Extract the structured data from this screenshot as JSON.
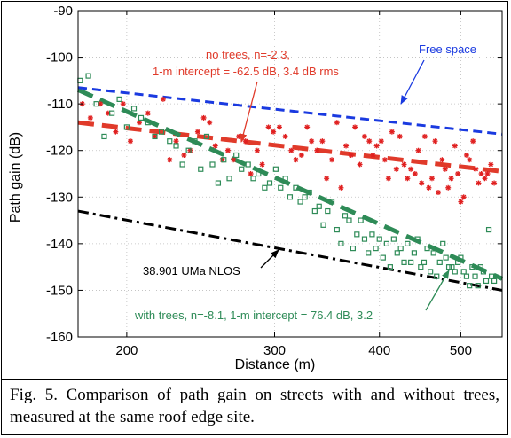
{
  "chart_data": {
    "type": "scatter",
    "xlabel": "Distance (m)",
    "ylabel": "Path gain (dB)",
    "xscale": "log",
    "xlim": [
      175,
      560
    ],
    "ylim": [
      -160,
      -90
    ],
    "xticks": [
      200,
      300,
      400,
      500
    ],
    "yticks": [
      -90,
      -100,
      -110,
      -120,
      -130,
      -140,
      -150,
      -160
    ],
    "grid": true,
    "series": [
      {
        "marker": "asterisk",
        "color": "#e02020",
        "points": [
          [
            177,
            -110
          ],
          [
            181,
            -113
          ],
          [
            186,
            -110
          ],
          [
            190,
            -112
          ],
          [
            194,
            -116
          ],
          [
            198,
            -110
          ],
          [
            202,
            -118
          ],
          [
            207,
            -114
          ],
          [
            212,
            -112
          ],
          [
            216,
            -117
          ],
          [
            221,
            -109
          ],
          [
            225,
            -122
          ],
          [
            229,
            -118
          ],
          [
            234,
            -121
          ],
          [
            238,
            -120
          ],
          [
            243,
            -116
          ],
          [
            247,
            -113
          ],
          [
            251,
            -114
          ],
          [
            255,
            -119
          ],
          [
            260,
            -122
          ],
          [
            264,
            -120
          ],
          [
            268,
            -122
          ],
          [
            272,
            -117
          ],
          [
            277,
            -118
          ],
          [
            281,
            -125
          ],
          [
            286,
            -120
          ],
          [
            290,
            -123
          ],
          [
            295,
            -115
          ],
          [
            299,
            -116
          ],
          [
            304,
            -115
          ],
          [
            309,
            -117
          ],
          [
            314,
            -120
          ],
          [
            318,
            -122
          ],
          [
            323,
            -121
          ],
          [
            328,
            -115
          ],
          [
            332,
            -118
          ],
          [
            337,
            -120
          ],
          [
            342,
            -118
          ],
          [
            346,
            -126
          ],
          [
            351,
            -122
          ],
          [
            356,
            -114
          ],
          [
            360,
            -128
          ],
          [
            365,
            -119
          ],
          [
            370,
            -121
          ],
          [
            374,
            -115
          ],
          [
            379,
            -123
          ],
          [
            384,
            -117
          ],
          [
            389,
            -118
          ],
          [
            393,
            -121
          ],
          [
            397,
            -119
          ],
          [
            402,
            -118
          ],
          [
            406,
            -122
          ],
          [
            410,
            -126
          ],
          [
            414,
            -116
          ],
          [
            419,
            -124
          ],
          [
            423,
            -117
          ],
          [
            428,
            -123
          ],
          [
            432,
            -126
          ],
          [
            436,
            -124
          ],
          [
            441,
            -125
          ],
          [
            445,
            -120
          ],
          [
            449,
            -127
          ],
          [
            453,
            -117
          ],
          [
            458,
            -128
          ],
          [
            462,
            -126
          ],
          [
            466,
            -118
          ],
          [
            470,
            -129
          ],
          [
            475,
            -122
          ],
          [
            479,
            -124
          ],
          [
            483,
            -128
          ],
          [
            487,
            -126
          ],
          [
            492,
            -119
          ],
          [
            496,
            -125
          ],
          [
            500,
            -131
          ],
          [
            504,
            -130
          ],
          [
            508,
            -121
          ],
          [
            512,
            -122
          ],
          [
            517,
            -118
          ],
          [
            521,
            -124
          ],
          [
            525,
            -127
          ],
          [
            529,
            -125
          ],
          [
            534,
            -126
          ],
          [
            538,
            -125
          ],
          [
            543,
            -123
          ],
          [
            548,
            -127
          ]
        ]
      },
      {
        "marker": "square",
        "color": "#2e8b57",
        "points": [
          [
            176,
            -105
          ],
          [
            180,
            -104
          ],
          [
            184,
            -110
          ],
          [
            188,
            -117
          ],
          [
            192,
            -112
          ],
          [
            196,
            -109
          ],
          [
            200,
            -115
          ],
          [
            204,
            -111
          ],
          [
            208,
            -113
          ],
          [
            212,
            -114
          ],
          [
            216,
            -117
          ],
          [
            220,
            -116
          ],
          [
            225,
            -118
          ],
          [
            229,
            -119
          ],
          [
            233,
            -123
          ],
          [
            237,
            -120
          ],
          [
            241,
            -118
          ],
          [
            245,
            -124
          ],
          [
            249,
            -117
          ],
          [
            253,
            -123
          ],
          [
            257,
            -127
          ],
          [
            261,
            -122
          ],
          [
            265,
            -126
          ],
          [
            270,
            -121
          ],
          [
            274,
            -124
          ],
          [
            279,
            -123
          ],
          [
            283,
            -126
          ],
          [
            287,
            -125
          ],
          [
            292,
            -128
          ],
          [
            296,
            -127
          ],
          [
            301,
            -124
          ],
          [
            305,
            -128
          ],
          [
            309,
            -126
          ],
          [
            313,
            -130
          ],
          [
            318,
            -128
          ],
          [
            322,
            -131
          ],
          [
            326,
            -130
          ],
          [
            330,
            -129
          ],
          [
            335,
            -133
          ],
          [
            339,
            -132
          ],
          [
            343,
            -136
          ],
          [
            347,
            -133
          ],
          [
            351,
            -131
          ],
          [
            356,
            -137
          ],
          [
            360,
            -140
          ],
          [
            364,
            -134
          ],
          [
            368,
            -135
          ],
          [
            372,
            -141
          ],
          [
            376,
            -138
          ],
          [
            380,
            -135
          ],
          [
            384,
            -139
          ],
          [
            388,
            -142
          ],
          [
            392,
            -138
          ],
          [
            396,
            -141
          ],
          [
            400,
            -139
          ],
          [
            404,
            -143
          ],
          [
            408,
            -140
          ],
          [
            412,
            -145
          ],
          [
            416,
            -139
          ],
          [
            420,
            -142
          ],
          [
            424,
            -141
          ],
          [
            428,
            -144
          ],
          [
            432,
            -140
          ],
          [
            436,
            -144
          ],
          [
            440,
            -142
          ],
          [
            444,
            -139
          ],
          [
            448,
            -145
          ],
          [
            452,
            -144
          ],
          [
            456,
            -141
          ],
          [
            460,
            -146
          ],
          [
            464,
            -142
          ],
          [
            468,
            -147
          ],
          [
            472,
            -144
          ],
          [
            476,
            -140
          ],
          [
            480,
            -143
          ],
          [
            484,
            -145
          ],
          [
            488,
            -145
          ],
          [
            492,
            -146
          ],
          [
            496,
            -144
          ],
          [
            500,
            -143
          ],
          [
            504,
            -146
          ],
          [
            508,
            -147
          ],
          [
            512,
            -149
          ],
          [
            516,
            -145
          ],
          [
            520,
            -147
          ],
          [
            524,
            -149
          ],
          [
            528,
            -145
          ],
          [
            532,
            -146
          ],
          [
            536,
            -148
          ],
          [
            540,
            -137
          ],
          [
            544,
            -147
          ],
          [
            548,
            -148
          ]
        ]
      }
    ],
    "lines": [
      {
        "style": "dash-thick",
        "color": "#e03a2a",
        "x": [
          175,
          560
        ],
        "y": [
          -114,
          -124.5
        ]
      },
      {
        "style": "dash-thick",
        "color": "#2e8b57",
        "x": [
          175,
          560
        ],
        "y": [
          -107,
          -147.5
        ]
      },
      {
        "style": "dash",
        "color": "#1a3ae0",
        "x": [
          175,
          560
        ],
        "y": [
          -106.5,
          -116.5
        ]
      },
      {
        "style": "dashdot",
        "color": "#000000",
        "x": [
          175,
          560
        ],
        "y": [
          -133,
          -150
        ]
      }
    ],
    "annotations": {
      "no_trees_1": "no trees, n=-2.3,",
      "no_trees_2": "1-m intercept = -62.5 dB, 3.4 dB rms",
      "free_space": "Free space",
      "uma": "38.901 UMa NLOS",
      "with_trees": "with trees, n=-8.1, 1-m intercept = 76.4 dB, 3.2"
    },
    "annotation_colors": {
      "no_trees": "#e03a2a",
      "free_space": "#1a3ae0",
      "uma": "#000000",
      "with_trees": "#2e8b57"
    }
  },
  "caption": "Fig. 5. Comparison of path gain on streets with and without trees, measured at the same roof edge site."
}
